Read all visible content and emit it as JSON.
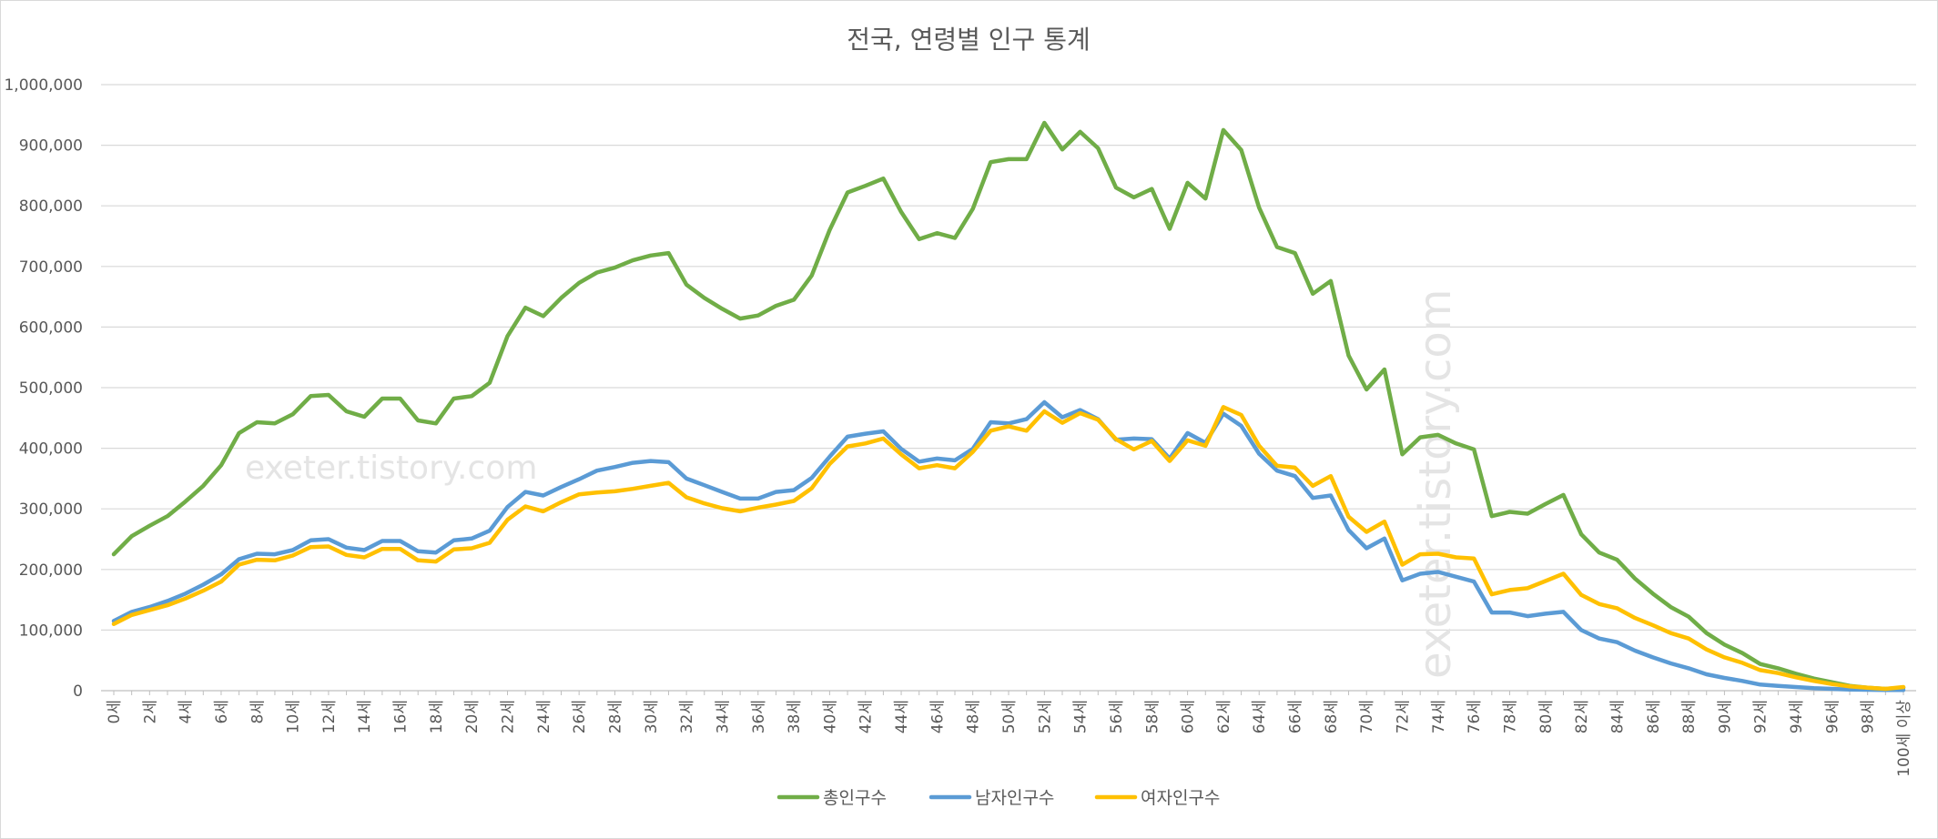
{
  "chart_data": {
    "type": "line",
    "title": "전국, 연령별 인구 통계",
    "xlabel": "",
    "ylabel": "",
    "ylim": [
      0,
      1000000
    ],
    "y_ticks": [
      "0",
      "100,000",
      "200,000",
      "300,000",
      "400,000",
      "500,000",
      "600,000",
      "700,000",
      "800,000",
      "900,000",
      "1,000,000"
    ],
    "grid": true,
    "legend_position": "bottom",
    "categories": [
      "0세",
      "1세",
      "2세",
      "3세",
      "4세",
      "5세",
      "6세",
      "7세",
      "8세",
      "9세",
      "10세",
      "11세",
      "12세",
      "13세",
      "14세",
      "15세",
      "16세",
      "17세",
      "18세",
      "19세",
      "20세",
      "21세",
      "22세",
      "23세",
      "24세",
      "25세",
      "26세",
      "27세",
      "28세",
      "29세",
      "30세",
      "31세",
      "32세",
      "33세",
      "34세",
      "35세",
      "36세",
      "37세",
      "38세",
      "39세",
      "40세",
      "41세",
      "42세",
      "43세",
      "44세",
      "45세",
      "46세",
      "47세",
      "48세",
      "49세",
      "50세",
      "51세",
      "52세",
      "53세",
      "54세",
      "55세",
      "56세",
      "57세",
      "58세",
      "59세",
      "60세",
      "61세",
      "62세",
      "63세",
      "64세",
      "65세",
      "66세",
      "67세",
      "68세",
      "69세",
      "70세",
      "71세",
      "72세",
      "73세",
      "74세",
      "75세",
      "76세",
      "77세",
      "78세",
      "79세",
      "80세",
      "81세",
      "82세",
      "83세",
      "84세",
      "85세",
      "86세",
      "87세",
      "88세",
      "89세",
      "90세",
      "91세",
      "92세",
      "93세",
      "94세",
      "95세",
      "96세",
      "97세",
      "98세",
      "99세",
      "100세 이상"
    ],
    "series": [
      {
        "name": "총인구수",
        "color": "#70ad47",
        "values": [
          225000,
          255000,
          272000,
          288000,
          312000,
          338000,
          372000,
          425000,
          443000,
          441000,
          456000,
          486000,
          488000,
          461000,
          452000,
          482000,
          482000,
          446000,
          441000,
          482000,
          486000,
          508000,
          585000,
          632000,
          618000,
          648000,
          673000,
          690000,
          698000,
          710000,
          718000,
          722000,
          670000,
          648000,
          630000,
          614000,
          619000,
          635000,
          645000,
          685000,
          760000,
          822000,
          833000,
          845000,
          790000,
          745000,
          755000,
          747000,
          795000,
          872000,
          877000,
          877000,
          937000,
          893000,
          922000,
          895000,
          830000,
          814000,
          828000,
          762000,
          838000,
          812000,
          925000,
          892000,
          797000,
          732000,
          722000,
          655000,
          676000,
          553000,
          497000,
          530000,
          390000,
          418000,
          422000,
          408000,
          398000,
          288000,
          295000,
          292000,
          308000,
          323000,
          258000,
          228000,
          216000,
          185000,
          160000,
          138000,
          122000,
          95000,
          76000,
          62000,
          44000,
          37000,
          28000,
          20000,
          14000,
          8000,
          5000,
          3000,
          5000
        ]
      },
      {
        "name": "남자인구수",
        "color": "#5b9bd5",
        "values": [
          115000,
          130000,
          138000,
          148000,
          160000,
          175000,
          192000,
          217000,
          226000,
          225000,
          232000,
          248000,
          250000,
          236000,
          232000,
          247000,
          247000,
          230000,
          228000,
          248000,
          251000,
          264000,
          303000,
          328000,
          322000,
          336000,
          349000,
          363000,
          369000,
          376000,
          379000,
          377000,
          350000,
          339000,
          328000,
          317000,
          317000,
          328000,
          331000,
          351000,
          386000,
          419000,
          424000,
          428000,
          399000,
          378000,
          383000,
          380000,
          399000,
          443000,
          441000,
          448000,
          476000,
          451000,
          463000,
          448000,
          414000,
          416000,
          415000,
          383000,
          425000,
          409000,
          457000,
          437000,
          391000,
          363000,
          354000,
          318000,
          322000,
          265000,
          235000,
          251000,
          182000,
          193000,
          196000,
          188000,
          180000,
          129000,
          129000,
          123000,
          127000,
          130000,
          100000,
          86000,
          80000,
          66000,
          55000,
          45000,
          37000,
          27000,
          21000,
          16000,
          10000,
          8000,
          6000,
          4000,
          3000,
          2000,
          1500,
          1000,
          1000
        ]
      },
      {
        "name": "여자인구수",
        "color": "#ffc000",
        "values": [
          110000,
          125000,
          133000,
          141000,
          152000,
          165000,
          180000,
          208000,
          216000,
          215000,
          223000,
          237000,
          238000,
          224000,
          220000,
          234000,
          234000,
          215000,
          213000,
          233000,
          235000,
          244000,
          282000,
          304000,
          296000,
          311000,
          324000,
          327000,
          329000,
          333000,
          338000,
          343000,
          319000,
          309000,
          301000,
          296000,
          302000,
          307000,
          313000,
          334000,
          374000,
          403000,
          408000,
          416000,
          390000,
          367000,
          372000,
          367000,
          394000,
          429000,
          436000,
          429000,
          461000,
          442000,
          458000,
          447000,
          415000,
          398000,
          412000,
          379000,
          413000,
          404000,
          468000,
          455000,
          404000,
          371000,
          368000,
          338000,
          354000,
          287000,
          262000,
          279000,
          208000,
          225000,
          226000,
          220000,
          218000,
          159000,
          166000,
          169000,
          181000,
          193000,
          158000,
          143000,
          136000,
          120000,
          108000,
          95000,
          86000,
          68000,
          55000,
          46000,
          34000,
          29000,
          22000,
          16000,
          11000,
          7000,
          5000,
          3000,
          6000
        ]
      }
    ]
  },
  "watermarks": [
    "exeter.tistory.com",
    "exeter.tistory.com"
  ]
}
